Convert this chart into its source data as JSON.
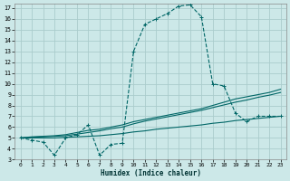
{
  "xlabel": "Humidex (Indice chaleur)",
  "bg_color": "#cce8e8",
  "grid_color": "#aacccc",
  "line_color": "#006666",
  "xlim": [
    -0.5,
    23.5
  ],
  "ylim": [
    3,
    17.4
  ],
  "xticks": [
    0,
    1,
    2,
    3,
    4,
    5,
    6,
    7,
    8,
    9,
    10,
    11,
    12,
    13,
    14,
    15,
    16,
    17,
    18,
    19,
    20,
    21,
    22,
    23
  ],
  "yticks": [
    3,
    4,
    5,
    6,
    7,
    8,
    9,
    10,
    11,
    12,
    13,
    14,
    15,
    16,
    17
  ],
  "s1_x": [
    0,
    1,
    2,
    3,
    4,
    5,
    6,
    7,
    8,
    9,
    10,
    11,
    12,
    13,
    14,
    15,
    16,
    17,
    18,
    19,
    20,
    21,
    22,
    23
  ],
  "s1_y": [
    5.0,
    4.8,
    4.6,
    3.4,
    5.0,
    5.3,
    6.2,
    3.4,
    4.4,
    4.5,
    13.0,
    15.5,
    16.0,
    16.5,
    17.2,
    17.3,
    16.2,
    10.0,
    9.8,
    7.3,
    6.5,
    7.0,
    7.0,
    7.0
  ],
  "s2_x": [
    0,
    1,
    2,
    3,
    4,
    5,
    6,
    7,
    8,
    9,
    10,
    11,
    12,
    13,
    14,
    15,
    16,
    17,
    18,
    19,
    20,
    21,
    22,
    23
  ],
  "s2_y": [
    5.0,
    5.1,
    5.15,
    5.2,
    5.3,
    5.5,
    5.7,
    5.8,
    6.0,
    6.2,
    6.5,
    6.7,
    6.9,
    7.1,
    7.3,
    7.5,
    7.7,
    8.0,
    8.3,
    8.6,
    8.8,
    9.0,
    9.2,
    9.5
  ],
  "s3_x": [
    0,
    1,
    2,
    3,
    4,
    5,
    6,
    7,
    8,
    9,
    10,
    11,
    12,
    13,
    14,
    15,
    16,
    17,
    18,
    19,
    20,
    21,
    22,
    23
  ],
  "s3_y": [
    5.0,
    5.05,
    5.1,
    5.15,
    5.2,
    5.35,
    5.5,
    5.65,
    5.85,
    6.0,
    6.3,
    6.55,
    6.75,
    6.95,
    7.15,
    7.35,
    7.55,
    7.8,
    8.05,
    8.3,
    8.5,
    8.75,
    8.95,
    9.2
  ],
  "s4_x": [
    0,
    1,
    2,
    3,
    4,
    5,
    6,
    7,
    8,
    9,
    10,
    11,
    12,
    13,
    14,
    15,
    16,
    17,
    18,
    19,
    20,
    21,
    22,
    23
  ],
  "s4_y": [
    5.0,
    5.0,
    5.0,
    5.0,
    5.05,
    5.1,
    5.15,
    5.2,
    5.3,
    5.4,
    5.55,
    5.65,
    5.8,
    5.9,
    6.0,
    6.1,
    6.2,
    6.35,
    6.45,
    6.6,
    6.7,
    6.8,
    6.9,
    7.0
  ]
}
